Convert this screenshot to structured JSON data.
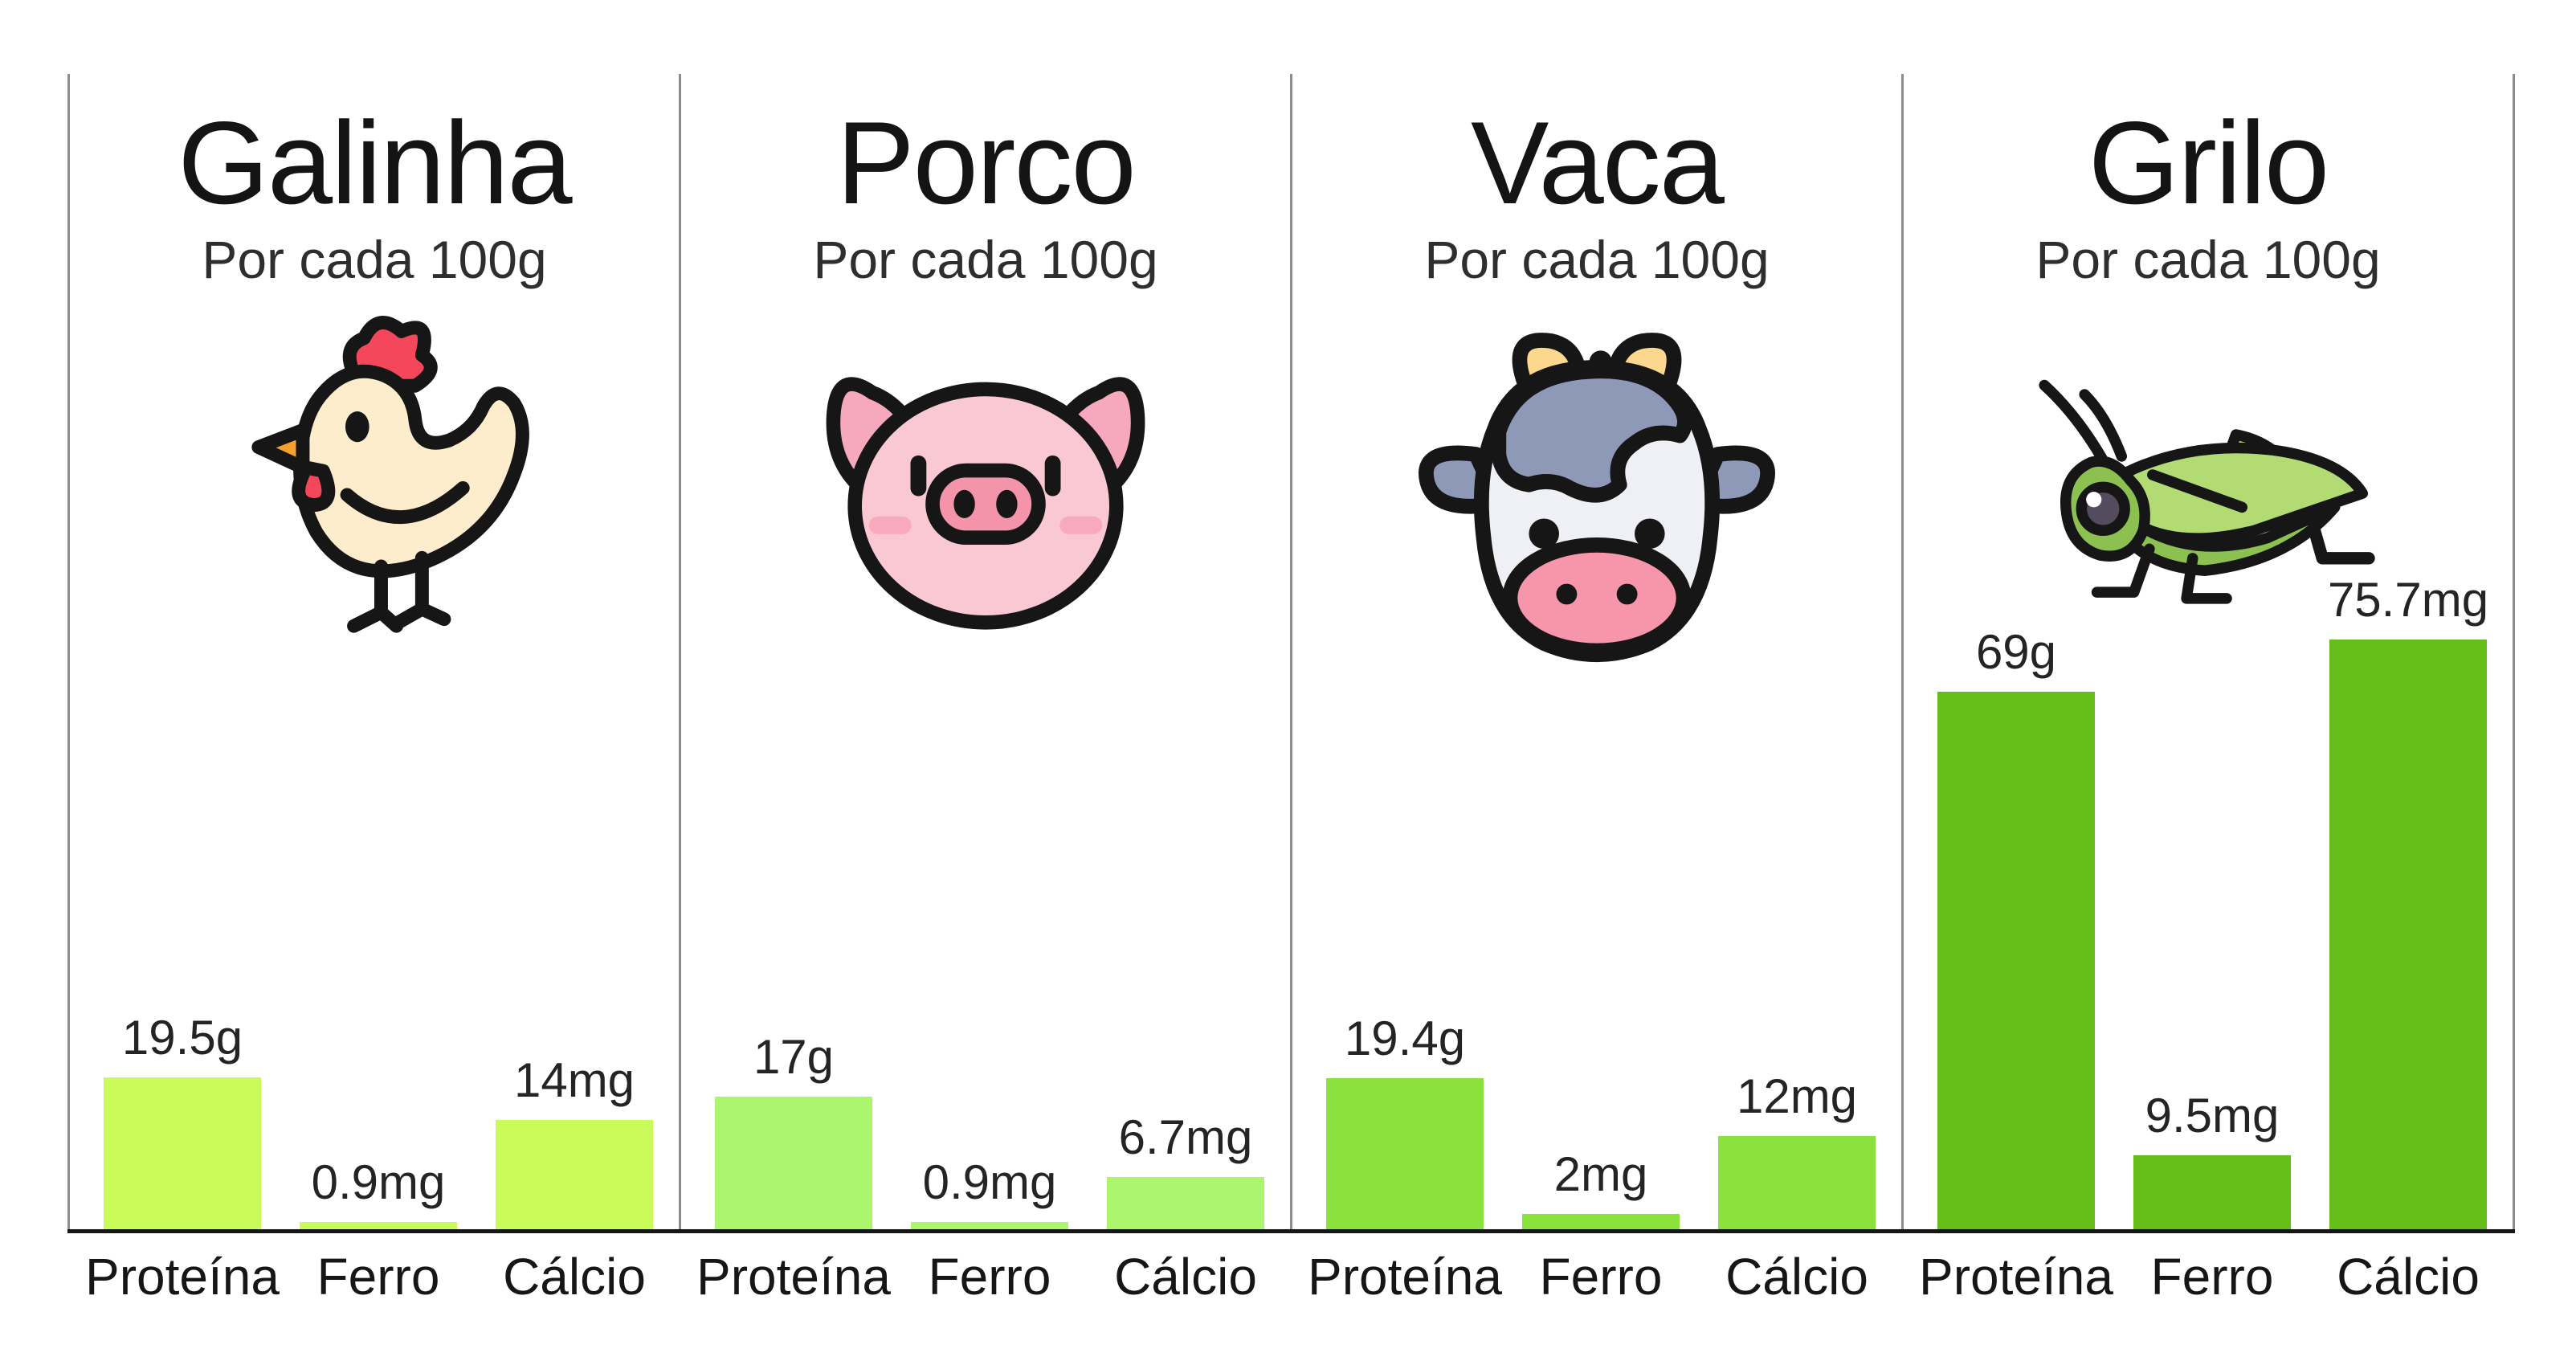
{
  "chart_data": [
    {
      "type": "bar",
      "title": "Galinha",
      "subtitle": "Por cada 100g",
      "icon": "chicken-icon",
      "categories": [
        "Proteína",
        "Ferro",
        "Cálcio"
      ],
      "values": [
        19.5,
        0.9,
        14
      ],
      "value_labels": [
        "19.5g",
        "0.9mg",
        "14mg"
      ],
      "bar_color": "#c9fc59",
      "ylim": [
        0,
        148
      ],
      "grid": false,
      "legend": false,
      "y_axis_visible": false
    },
    {
      "type": "bar",
      "title": "Porco",
      "subtitle": "Por cada 100g",
      "icon": "pig-icon",
      "categories": [
        "Proteína",
        "Ferro",
        "Cálcio"
      ],
      "values": [
        17,
        0.9,
        6.7
      ],
      "value_labels": [
        "17g",
        "0.9mg",
        "6.7mg"
      ],
      "bar_color": "#aaf56b",
      "ylim": [
        0,
        148
      ],
      "grid": false,
      "legend": false,
      "y_axis_visible": false
    },
    {
      "type": "bar",
      "title": "Vaca",
      "subtitle": "Por cada 100g",
      "icon": "cow-icon",
      "categories": [
        "Proteína",
        "Ferro",
        "Cálcio"
      ],
      "values": [
        19.4,
        2,
        12
      ],
      "value_labels": [
        "19.4g",
        "2mg",
        "12mg"
      ],
      "bar_color": "#8ce23c",
      "ylim": [
        0,
        148
      ],
      "grid": false,
      "legend": false,
      "y_axis_visible": false
    },
    {
      "type": "bar",
      "title": "Grilo",
      "subtitle": "Por cada 100g",
      "icon": "cricket-icon",
      "categories": [
        "Proteína",
        "Ferro",
        "Cálcio"
      ],
      "values": [
        69,
        9.5,
        75.7
      ],
      "value_labels": [
        "69g",
        "9.5mg",
        "75.7mg"
      ],
      "bar_color": "#65bd17",
      "ylim": [
        0,
        148
      ],
      "grid": false,
      "legend": false,
      "y_axis_visible": false
    }
  ],
  "style": {
    "background": "#ffffff",
    "axis_color": "#161616",
    "divider_color": "#8d8d8d",
    "title_color": "#141414",
    "subtitle_color": "#2e2e2e",
    "value_label_color": "#242424",
    "category_label_color": "#161616"
  }
}
